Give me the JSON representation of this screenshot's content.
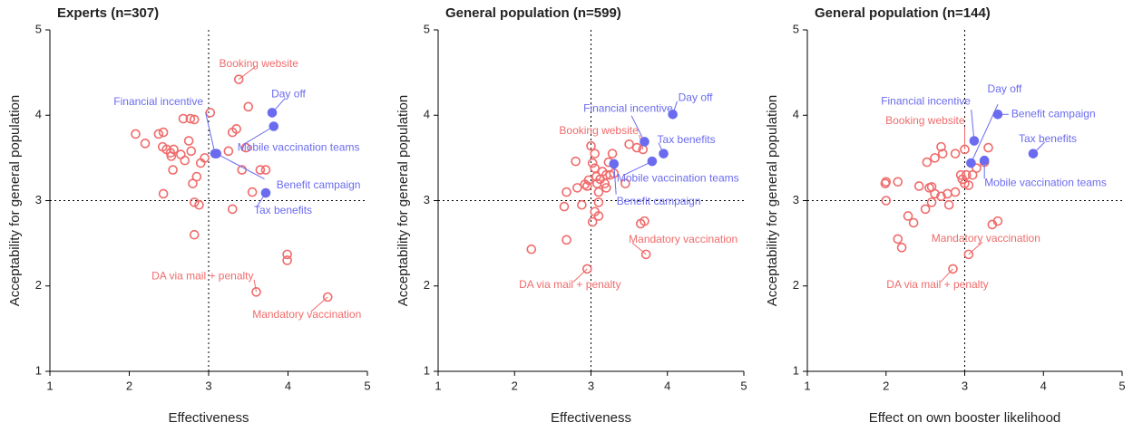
{
  "chart_data": [
    {
      "type": "scatter",
      "title": "Experts (n=307)",
      "x_label": "Effectiveness",
      "y_label": "Acceptability for general population",
      "xlim": [
        1,
        5
      ],
      "ylim": [
        1,
        5
      ],
      "xticks": [
        1,
        2,
        3,
        4,
        5
      ],
      "yticks": [
        1,
        2,
        3,
        4,
        5
      ],
      "reference_lines": {
        "x": 3,
        "y": 3
      },
      "series": [
        {
          "color": "#f06b6b",
          "marker": "open",
          "x": [
            2.08,
            2.2,
            2.37,
            2.43,
            2.42,
            2.47,
            2.52,
            2.56,
            2.53,
            2.65,
            2.55,
            2.7,
            2.68,
            2.77,
            2.82,
            2.75,
            2.78,
            2.8,
            2.85,
            2.9,
            2.95,
            3.02,
            2.82,
            2.88,
            2.82,
            2.43,
            3.3,
            3.35,
            3.25,
            3.42,
            3.47,
            3.5,
            3.65,
            3.72,
            3.55,
            3.3,
            3.99,
            3.99
          ],
          "y": [
            3.78,
            3.67,
            3.78,
            3.8,
            3.63,
            3.6,
            3.56,
            3.6,
            3.52,
            3.54,
            3.36,
            3.47,
            3.96,
            3.96,
            3.95,
            3.7,
            3.58,
            3.2,
            3.28,
            3.44,
            3.5,
            4.03,
            2.98,
            2.95,
            2.6,
            3.08,
            3.8,
            3.84,
            3.58,
            3.36,
            3.62,
            4.1,
            3.36,
            3.36,
            3.1,
            2.9,
            2.37,
            2.3
          ]
        }
      ],
      "annotations": [
        {
          "text": "Booking website",
          "x": 3.38,
          "y": 4.42,
          "color": "#f06b6b",
          "marker": "open"
        },
        {
          "text": "Day off",
          "x": 3.8,
          "y": 4.03,
          "color": "#6b6bf0",
          "marker": "filled"
        },
        {
          "text": "Financial incentive",
          "x": 3.08,
          "y": 3.55,
          "color": "#6b6bf0",
          "marker": "filled"
        },
        {
          "text": "Mobile vaccination teams",
          "x": 3.82,
          "y": 3.87,
          "color": "#6b6bf0",
          "marker": "filled"
        },
        {
          "text": "Benefit campaign",
          "x": 3.1,
          "y": 3.55,
          "color": "#6b6bf0",
          "marker": "filled"
        },
        {
          "text": "Tax benefits",
          "x": 3.72,
          "y": 3.09,
          "color": "#6b6bf0",
          "marker": "filled"
        },
        {
          "text": "DA via mail + penalty",
          "x": 3.6,
          "y": 1.93,
          "color": "#f06b6b",
          "marker": "open"
        },
        {
          "text": "Mandatory vaccination",
          "x": 4.5,
          "y": 1.87,
          "color": "#f06b6b",
          "marker": "open"
        }
      ]
    },
    {
      "type": "scatter",
      "title": "General population (n=599)",
      "x_label": "Effectiveness",
      "y_label": "Acceptability for general population",
      "xlim": [
        1,
        5
      ],
      "ylim": [
        1,
        5
      ],
      "xticks": [
        1,
        2,
        3,
        4,
        5
      ],
      "yticks": [
        1,
        2,
        3,
        4,
        5
      ],
      "reference_lines": {
        "x": 3,
        "y": 3
      },
      "series": [
        {
          "color": "#f06b6b",
          "marker": "open",
          "x": [
            2.22,
            2.68,
            2.65,
            2.68,
            2.8,
            2.82,
            2.88,
            2.92,
            2.97,
            3.0,
            3.02,
            3.05,
            3.05,
            3.07,
            3.08,
            3.1,
            3.12,
            3.15,
            3.18,
            3.2,
            3.23,
            3.25,
            3.28,
            3.3,
            3.2,
            3.1,
            3.05,
            3.1,
            3.02,
            3.5,
            3.6,
            3.45,
            3.65,
            3.7,
            2.95
          ],
          "y": [
            2.43,
            2.54,
            2.93,
            3.1,
            3.46,
            3.15,
            2.95,
            3.19,
            3.24,
            3.64,
            3.44,
            3.55,
            3.38,
            3.28,
            3.2,
            3.1,
            3.25,
            3.34,
            3.2,
            3.3,
            3.45,
            3.3,
            3.55,
            3.32,
            3.15,
            2.98,
            2.87,
            2.82,
            2.75,
            3.66,
            3.62,
            3.2,
            2.73,
            2.76,
            3.17
          ]
        }
      ],
      "annotations": [
        {
          "text": "Booking website",
          "x": 3.68,
          "y": 3.6,
          "color": "#f06b6b",
          "marker": "open"
        },
        {
          "text": "Day off",
          "x": 4.07,
          "y": 4.01,
          "color": "#6b6bf0",
          "marker": "filled"
        },
        {
          "text": "Financial incentive",
          "x": 3.7,
          "y": 3.69,
          "color": "#6b6bf0",
          "marker": "filled"
        },
        {
          "text": "Tax benefits",
          "x": 3.95,
          "y": 3.55,
          "color": "#6b6bf0",
          "marker": "filled"
        },
        {
          "text": "Mobile vaccination teams",
          "x": 3.8,
          "y": 3.46,
          "color": "#6b6bf0",
          "marker": "filled"
        },
        {
          "text": "Benefit campaign",
          "x": 3.3,
          "y": 3.43,
          "color": "#6b6bf0",
          "marker": "filled"
        },
        {
          "text": "Mandatory vaccination",
          "x": 3.72,
          "y": 2.37,
          "color": "#f06b6b",
          "marker": "open"
        },
        {
          "text": "DA via mail + penalty",
          "x": 2.95,
          "y": 2.2,
          "color": "#f06b6b",
          "marker": "open"
        }
      ]
    },
    {
      "type": "scatter",
      "title": "General population (n=144)",
      "x_label": "Effect on own booster likelihood",
      "y_label": "Acceptability for general population",
      "xlim": [
        1,
        5
      ],
      "ylim": [
        1,
        5
      ],
      "xticks": [
        1,
        2,
        3,
        4,
        5
      ],
      "yticks": [
        1,
        2,
        3,
        4,
        5
      ],
      "reference_lines": {
        "x": 3,
        "y": 3
      },
      "series": [
        {
          "color": "#f06b6b",
          "marker": "open",
          "x": [
            2.0,
            2.0,
            1.99,
            2.15,
            2.15,
            2.2,
            2.28,
            2.35,
            2.42,
            2.5,
            2.52,
            2.58,
            2.62,
            2.62,
            2.7,
            2.72,
            2.78,
            2.8,
            2.88,
            2.88,
            2.95,
            2.97,
            3.0,
            3.02,
            3.05,
            3.1,
            3.15,
            3.25,
            3.3,
            3.35,
            3.42,
            2.58,
            2.55,
            2.7
          ],
          "y": [
            3.22,
            3.0,
            3.2,
            3.22,
            2.55,
            2.45,
            2.82,
            2.74,
            3.17,
            2.9,
            3.45,
            3.16,
            3.08,
            3.5,
            3.63,
            3.55,
            3.08,
            2.95,
            3.1,
            3.55,
            3.3,
            3.25,
            3.2,
            3.3,
            3.18,
            3.3,
            3.38,
            3.45,
            3.62,
            2.72,
            2.76,
            2.98,
            3.15,
            3.05
          ]
        }
      ],
      "annotations": [
        {
          "text": "Booking website",
          "x": 3.0,
          "y": 3.6,
          "color": "#f06b6b",
          "marker": "open"
        },
        {
          "text": "Financial incentive",
          "x": 3.12,
          "y": 3.7,
          "color": "#6b6bf0",
          "marker": "filled"
        },
        {
          "text": "Day off",
          "x": 3.08,
          "y": 3.44,
          "color": "#6b6bf0",
          "marker": "filled"
        },
        {
          "text": "Benefit campaign",
          "x": 3.42,
          "y": 4.01,
          "color": "#6b6bf0",
          "marker": "filled"
        },
        {
          "text": "Tax benefits",
          "x": 3.87,
          "y": 3.55,
          "color": "#6b6bf0",
          "marker": "filled"
        },
        {
          "text": "Mobile vaccination teams",
          "x": 3.25,
          "y": 3.47,
          "color": "#6b6bf0",
          "marker": "filled"
        },
        {
          "text": "Mandatory vaccination",
          "x": 3.05,
          "y": 2.37,
          "color": "#f06b6b",
          "marker": "open"
        },
        {
          "text": "DA via mail + penalty",
          "x": 2.85,
          "y": 2.2,
          "color": "#f06b6b",
          "marker": "open"
        }
      ]
    }
  ]
}
